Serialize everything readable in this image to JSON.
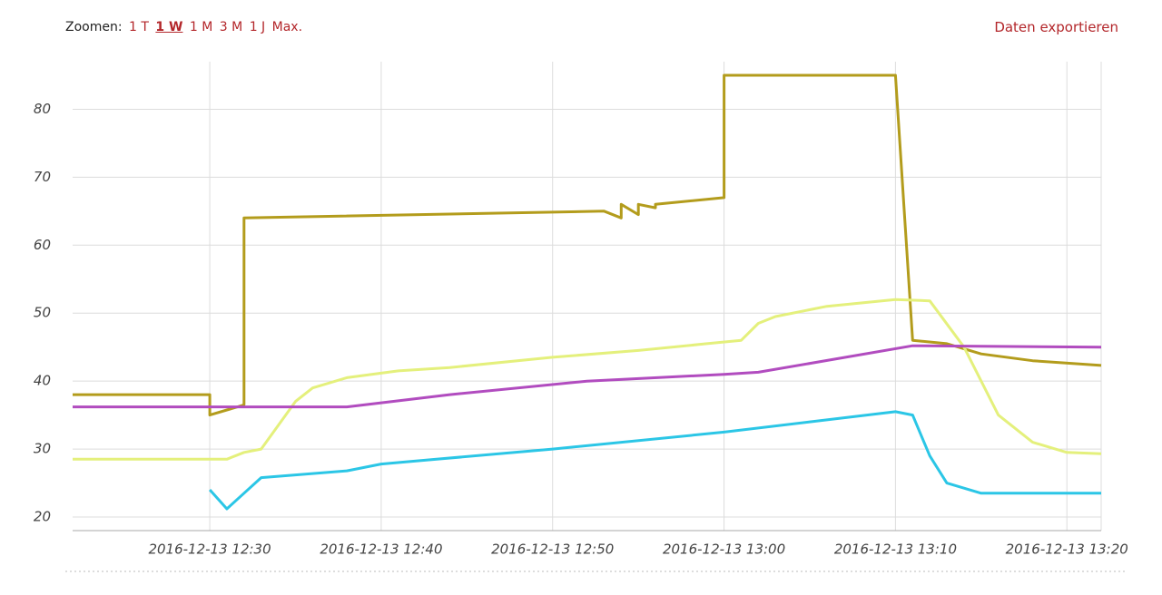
{
  "toolbar": {
    "label": "Zoomen:",
    "zoom_options": [
      "1 T",
      "1 W",
      "1 M",
      "3 M",
      "1 J",
      "Max."
    ],
    "export": "Daten exportieren"
  },
  "chart_data": {
    "type": "line",
    "xlim": [
      "2016-12-13 12:22",
      "2016-12-13 13:22"
    ],
    "xticks": [
      "2016-12-13 12:30",
      "2016-12-13 12:40",
      "2016-12-13 12:50",
      "2016-12-13 13:00",
      "2016-12-13 13:10",
      "2016-12-13 13:20"
    ],
    "ylim": [
      18,
      87
    ],
    "yticks": [
      20,
      30,
      40,
      50,
      60,
      70,
      80
    ],
    "grid": true,
    "series": [
      {
        "color": "#b39c1c",
        "x": [
          "2016-12-13 12:22",
          "2016-12-13 12:30",
          "2016-12-13 12:30",
          "2016-12-13 12:32",
          "2016-12-13 12:32",
          "2016-12-13 12:53",
          "2016-12-13 12:54",
          "2016-12-13 12:54",
          "2016-12-13 12:55",
          "2016-12-13 12:55",
          "2016-12-13 12:56",
          "2016-12-13 12:56",
          "2016-12-13 13:00",
          "2016-12-13 13:00",
          "2016-12-13 13:10",
          "2016-12-13 13:11",
          "2016-12-13 13:13",
          "2016-12-13 13:15",
          "2016-12-13 13:18",
          "2016-12-13 13:22"
        ],
        "values": [
          38,
          38,
          35,
          36.5,
          64,
          65,
          64,
          66,
          64.5,
          66,
          65.5,
          66,
          67,
          85,
          85,
          46,
          45.5,
          44,
          43,
          42.3
        ]
      },
      {
        "color": "#e4f07c",
        "x": [
          "2016-12-13 12:22",
          "2016-12-13 12:31",
          "2016-12-13 12:32",
          "2016-12-13 12:33",
          "2016-12-13 12:35",
          "2016-12-13 12:36",
          "2016-12-13 12:38",
          "2016-12-13 12:41",
          "2016-12-13 12:44",
          "2016-12-13 12:50",
          "2016-12-13 12:55",
          "2016-12-13 12:59",
          "2016-12-13 13:01",
          "2016-12-13 13:02",
          "2016-12-13 13:03",
          "2016-12-13 13:06",
          "2016-12-13 13:10",
          "2016-12-13 13:12",
          "2016-12-13 13:14",
          "2016-12-13 13:16",
          "2016-12-13 13:18",
          "2016-12-13 13:20",
          "2016-12-13 13:22"
        ],
        "values": [
          28.5,
          28.5,
          29.5,
          30,
          37,
          39,
          40.5,
          41.5,
          42,
          43.5,
          44.5,
          45.5,
          46,
          48.5,
          49.5,
          51,
          52,
          51.8,
          45,
          35,
          31,
          29.5,
          29.3
        ]
      },
      {
        "color": "#b14cbf",
        "x": [
          "2016-12-13 12:22",
          "2016-12-13 12:38",
          "2016-12-13 12:44",
          "2016-12-13 12:52",
          "2016-12-13 13:00",
          "2016-12-13 13:02",
          "2016-12-13 13:11",
          "2016-12-13 13:22"
        ],
        "values": [
          36.2,
          36.2,
          38,
          40,
          41,
          41.3,
          45.2,
          45
        ]
      },
      {
        "color": "#2bc6e6",
        "x": [
          "2016-12-13 12:30",
          "2016-12-13 12:31",
          "2016-12-13 12:32",
          "2016-12-13 12:33",
          "2016-12-13 12:38",
          "2016-12-13 12:40",
          "2016-12-13 12:50",
          "2016-12-13 13:00",
          "2016-12-13 13:05",
          "2016-12-13 13:10",
          "2016-12-13 13:11",
          "2016-12-13 13:12",
          "2016-12-13 13:13",
          "2016-12-13 13:15",
          "2016-12-13 13:22"
        ],
        "values": [
          24,
          21.2,
          23.5,
          25.8,
          26.8,
          27.8,
          30,
          32.5,
          34,
          35.5,
          35,
          29,
          25,
          23.5,
          23.5
        ]
      }
    ]
  }
}
